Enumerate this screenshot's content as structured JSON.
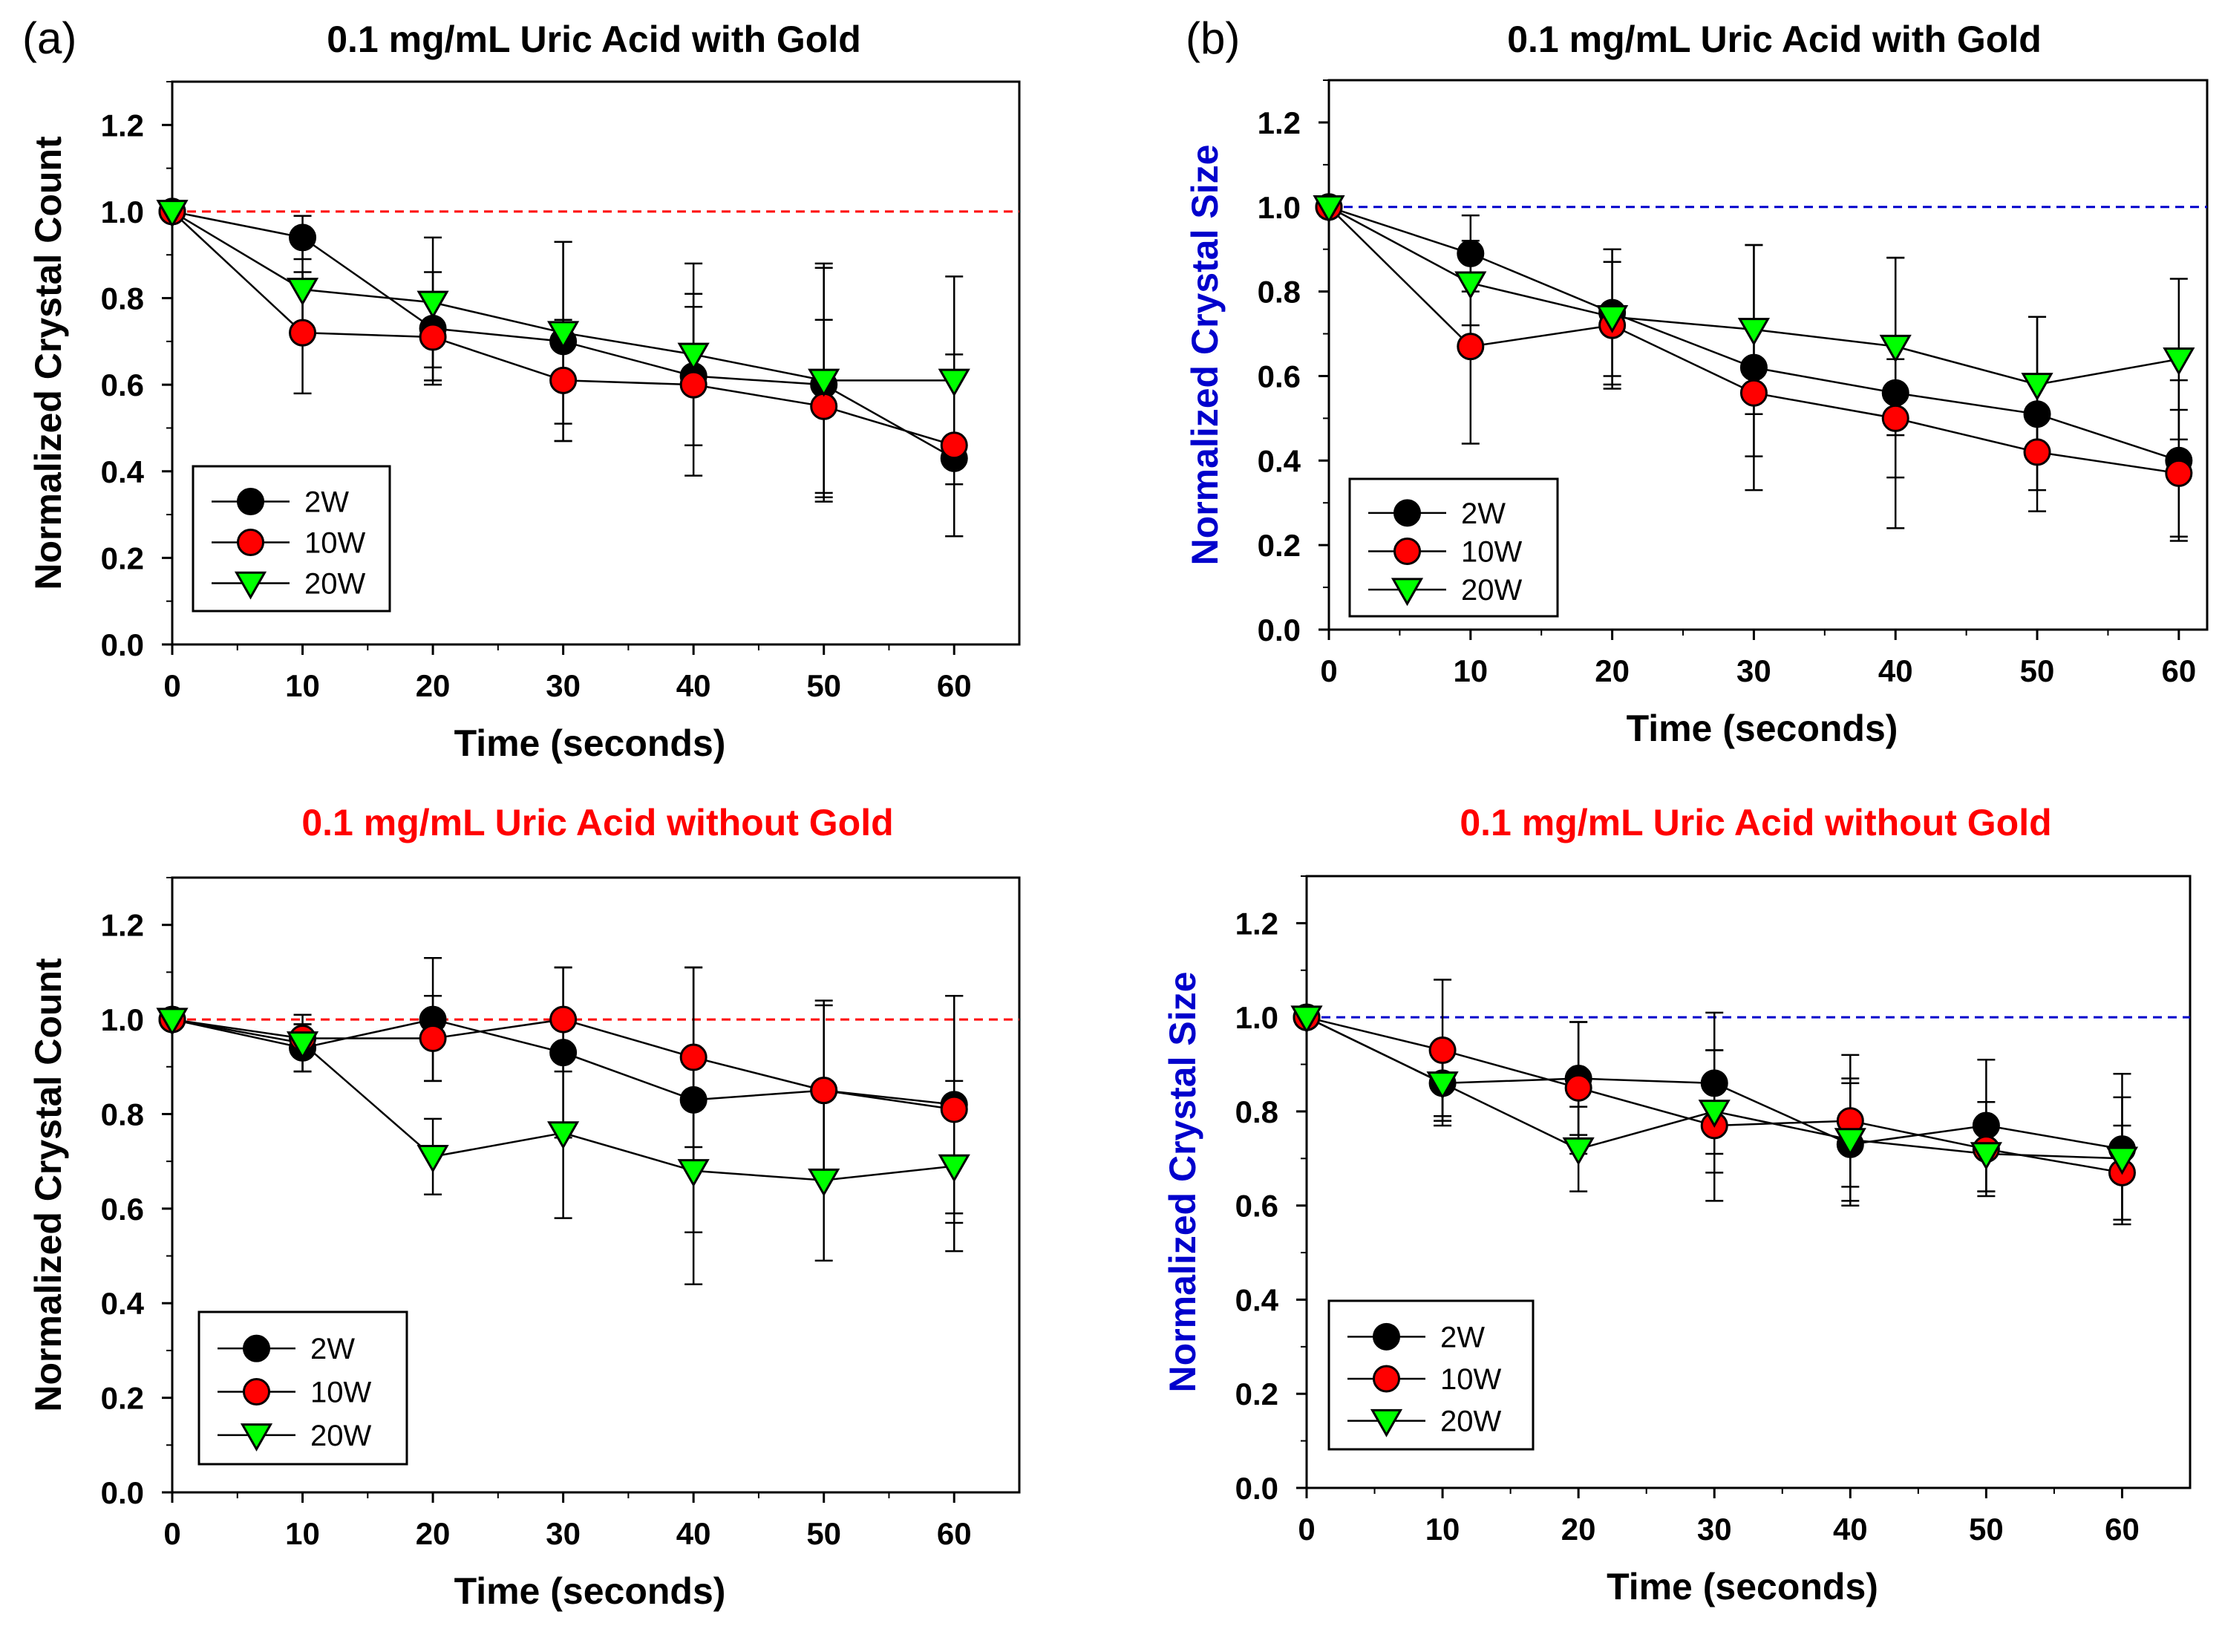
{
  "panel_labels": {
    "a": "(a)",
    "b": "(b)"
  },
  "colors": {
    "2W": "#000000",
    "10W": "#ff0000",
    "20W": "#00ff00",
    "title_black": "#000000",
    "title_red": "#ff0000",
    "ylabel_blue": "#0000cc",
    "refline_red": "#ff0000",
    "refline_blue": "#0000cc"
  },
  "chart_data": [
    {
      "type": "line",
      "title": "0.1 mg/mL Uric Acid with Gold",
      "title_color": "#000000",
      "xlabel": "Time (seconds)",
      "ylabel": "Normalized Crystal Count",
      "ylabel_color": "#000000",
      "xlim": [
        0,
        65
      ],
      "ylim": [
        0,
        1.3
      ],
      "xticks": [
        "0",
        "10",
        "20",
        "30",
        "40",
        "50",
        "60"
      ],
      "yticks": [
        "0.0",
        "0.2",
        "0.4",
        "0.6",
        "0.8",
        "1.0",
        "1.2"
      ],
      "reference_line": {
        "y": 1.0,
        "color": "#ff0000"
      },
      "legend_position": "bottom-left",
      "x": [
        0,
        10,
        20,
        30,
        40,
        50,
        60
      ],
      "series": [
        {
          "name": "2W",
          "marker": "circle",
          "color": "#000000",
          "values": [
            1.0,
            0.94,
            0.73,
            0.7,
            0.62,
            0.6,
            0.43
          ],
          "errors": [
            0,
            0.05,
            0.13,
            0.23,
            0.16,
            0.27,
            0.18
          ]
        },
        {
          "name": "10W",
          "marker": "circle",
          "color": "#ff0000",
          "values": [
            1.0,
            0.72,
            0.71,
            0.61,
            0.6,
            0.55,
            0.46
          ],
          "errors": [
            0,
            0.14,
            0.1,
            0.14,
            0.21,
            0.2,
            0.21
          ]
        },
        {
          "name": "20W",
          "marker": "triangle-down",
          "color": "#00ff00",
          "values": [
            1.0,
            0.82,
            0.79,
            0.72,
            0.67,
            0.61,
            0.61
          ],
          "errors": [
            0,
            0.1,
            0.15,
            0.21,
            0.21,
            0.27,
            0.24
          ]
        }
      ]
    },
    {
      "type": "line",
      "title": "0.1 mg/mL Uric Acid with Gold",
      "title_color": "#000000",
      "xlabel": "Time (seconds)",
      "ylabel": "Normalized Crystal Size",
      "ylabel_color": "#0000cc",
      "xlim": [
        0,
        62
      ],
      "ylim": [
        0,
        1.3
      ],
      "xticks": [
        "0",
        "10",
        "20",
        "30",
        "40",
        "50",
        "60"
      ],
      "yticks": [
        "0.0",
        "0.2",
        "0.4",
        "0.6",
        "0.8",
        "1.0",
        "1.2"
      ],
      "reference_line": {
        "y": 1.0,
        "color": "#0000cc"
      },
      "legend_position": "bottom-left",
      "x": [
        0,
        10,
        20,
        30,
        40,
        50,
        60
      ],
      "series": [
        {
          "name": "2W",
          "marker": "circle",
          "color": "#000000",
          "values": [
            1.0,
            0.89,
            0.75,
            0.62,
            0.56,
            0.51,
            0.4
          ],
          "errors": [
            0,
            0.09,
            0.15,
            0.29,
            0.32,
            0.23,
            0.19
          ]
        },
        {
          "name": "10W",
          "marker": "circle",
          "color": "#ff0000",
          "values": [
            1.0,
            0.67,
            0.72,
            0.56,
            0.5,
            0.42,
            0.37
          ],
          "errors": [
            0,
            0.23,
            0.15,
            0.15,
            0.14,
            0.09,
            0.15
          ]
        },
        {
          "name": "20W",
          "marker": "triangle-down",
          "color": "#00ff00",
          "values": [
            1.0,
            0.82,
            0.74,
            0.71,
            0.67,
            0.58,
            0.64
          ],
          "errors": [
            0,
            0.1,
            0.16,
            0.2,
            0.21,
            0.16,
            0.19
          ]
        }
      ]
    },
    {
      "type": "line",
      "title": "0.1 mg/mL Uric Acid without Gold",
      "title_color": "#ff0000",
      "xlabel": "Time (seconds)",
      "ylabel": "Normalized Crystal Count",
      "ylabel_color": "#000000",
      "xlim": [
        0,
        65
      ],
      "ylim": [
        0,
        1.3
      ],
      "xticks": [
        "0",
        "10",
        "20",
        "30",
        "40",
        "50",
        "60"
      ],
      "yticks": [
        "0.0",
        "0.2",
        "0.4",
        "0.6",
        "0.8",
        "1.0",
        "1.2"
      ],
      "reference_line": {
        "y": 1.0,
        "color": "#ff0000"
      },
      "legend_position": "bottom-left",
      "x": [
        0,
        10,
        20,
        30,
        40,
        50,
        60
      ],
      "series": [
        {
          "name": "2W",
          "marker": "circle",
          "color": "#000000",
          "values": [
            1.0,
            0.94,
            1.0,
            0.93,
            0.83,
            0.85,
            0.82
          ],
          "errors": [
            0,
            0.05,
            0.13,
            0.18,
            0.28,
            0.18,
            0.23
          ]
        },
        {
          "name": "10W",
          "marker": "circle",
          "color": "#ff0000",
          "values": [
            1.0,
            0.96,
            0.96,
            1.0,
            0.92,
            0.85,
            0.81
          ],
          "errors": [
            0,
            0.03,
            0.09,
            0.11,
            0.19,
            0.19,
            0.24
          ]
        },
        {
          "name": "20W",
          "marker": "triangle-down",
          "color": "#00ff00",
          "values": [
            1.0,
            0.95,
            0.71,
            0.76,
            0.68,
            0.66,
            0.69
          ],
          "errors": [
            0,
            0.06,
            0.08,
            0.18,
            0.24,
            0.17,
            0.18
          ]
        }
      ]
    },
    {
      "type": "line",
      "title": "0.1 mg/mL Uric Acid without Gold",
      "title_color": "#ff0000",
      "xlabel": "Time (seconds)",
      "ylabel": "Normalized Crystal Size",
      "ylabel_color": "#0000cc",
      "xlim": [
        0,
        65
      ],
      "ylim": [
        0,
        1.3
      ],
      "xticks": [
        "0",
        "10",
        "20",
        "30",
        "40",
        "50",
        "60"
      ],
      "yticks": [
        "0.0",
        "0.2",
        "0.4",
        "0.6",
        "0.8",
        "1.0",
        "1.2"
      ],
      "reference_line": {
        "y": 1.0,
        "color": "#0000cc"
      },
      "legend_position": "bottom-left",
      "x": [
        0,
        10,
        20,
        30,
        40,
        50,
        60
      ],
      "series": [
        {
          "name": "2W",
          "marker": "circle",
          "color": "#000000",
          "values": [
            1.0,
            0.86,
            0.87,
            0.86,
            0.73,
            0.77,
            0.72
          ],
          "errors": [
            0,
            0.09,
            0.12,
            0.15,
            0.13,
            0.14,
            0.16
          ]
        },
        {
          "name": "10W",
          "marker": "circle",
          "color": "#ff0000",
          "values": [
            1.0,
            0.93,
            0.85,
            0.77,
            0.78,
            0.72,
            0.67
          ],
          "errors": [
            0,
            0.15,
            0.14,
            0.16,
            0.14,
            0.1,
            0.1
          ]
        },
        {
          "name": "20W",
          "marker": "triangle-down",
          "color": "#00ff00",
          "values": [
            1.0,
            0.86,
            0.72,
            0.8,
            0.74,
            0.71,
            0.7
          ],
          "errors": [
            0,
            0.07,
            0.09,
            0.13,
            0.13,
            0.08,
            0.13
          ]
        }
      ]
    }
  ]
}
